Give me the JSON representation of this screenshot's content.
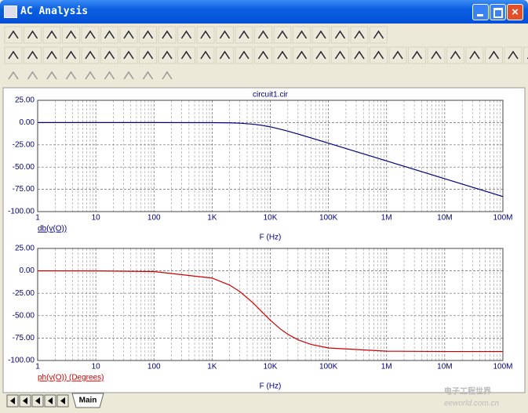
{
  "window": {
    "title": "AC Analysis"
  },
  "tabs": [
    "Main"
  ],
  "watermark": {
    "text": "电子工程世界",
    "url": "eeworld.com.cn"
  },
  "chart_data": [
    {
      "type": "line",
      "title": "circuit1.cir",
      "x_label": "F (Hz)",
      "log_x": true,
      "grid": true,
      "minor_grid": true,
      "x": [
        1,
        10,
        100,
        1000,
        2000,
        3000,
        5000,
        7000,
        10000,
        15000,
        20000,
        30000,
        50000,
        100000,
        1000000,
        10000000,
        100000000
      ],
      "series": [
        {
          "name": "db(v(O))",
          "color": "#000080",
          "values": [
            0,
            0,
            0,
            -0.1,
            -0.3,
            -0.7,
            -1.8,
            -3,
            -4.8,
            -7.5,
            -9.6,
            -12.9,
            -17.2,
            -23.1,
            -43.1,
            -63.1,
            -83.1
          ]
        }
      ],
      "xlim": [
        1,
        100000000
      ],
      "xticks": [
        1,
        10,
        100,
        {
          "value": 1000,
          "label": "1K"
        },
        {
          "value": 10000,
          "label": "10K"
        },
        {
          "value": 100000,
          "label": "100K"
        },
        {
          "value": 1000000,
          "label": "1M"
        },
        {
          "value": 10000000,
          "label": "10M"
        },
        {
          "value": 100000000,
          "label": "100M"
        }
      ],
      "ylim": [
        -100,
        25
      ],
      "yticks": [
        {
          "value": 25,
          "label": "25.00"
        },
        {
          "value": 0,
          "label": "0.00"
        },
        {
          "value": -25,
          "label": "-25.00"
        },
        {
          "value": -50,
          "label": "-50.00"
        },
        {
          "value": -75,
          "label": "-75.00"
        },
        {
          "value": -100,
          "label": "-100.00"
        }
      ]
    },
    {
      "type": "line",
      "x_label": "F (Hz)",
      "log_x": true,
      "grid": true,
      "minor_grid": true,
      "x": [
        1,
        10,
        100,
        1000,
        2000,
        3000,
        5000,
        7000,
        10000,
        15000,
        20000,
        30000,
        50000,
        100000,
        1000000,
        10000000,
        100000000
      ],
      "series": [
        {
          "name": "ph(v(O)) (Degrees)",
          "color": "#cc0000",
          "values": [
            0,
            -0.1,
            -0.8,
            -8.1,
            -15.9,
            -23.2,
            -35.5,
            -45,
            -55,
            -65,
            -70.7,
            -76.9,
            -82,
            -86,
            -89.6,
            -90,
            -90
          ]
        }
      ],
      "xlim": [
        1,
        100000000
      ],
      "xticks": [
        1,
        10,
        100,
        {
          "value": 1000,
          "label": "1K"
        },
        {
          "value": 10000,
          "label": "10K"
        },
        {
          "value": 100000,
          "label": "100K"
        },
        {
          "value": 1000000,
          "label": "1M"
        },
        {
          "value": 10000000,
          "label": "10M"
        },
        {
          "value": 100000000,
          "label": "100M"
        }
      ],
      "ylim": [
        -100,
        25
      ],
      "yticks": [
        {
          "value": 25,
          "label": "25.00"
        },
        {
          "value": 0,
          "label": "0.00"
        },
        {
          "value": -25,
          "label": "-25.00"
        },
        {
          "value": -50,
          "label": "-50.00"
        },
        {
          "value": -75,
          "label": "-75.00"
        },
        {
          "value": -100,
          "label": "-100.00"
        }
      ]
    }
  ]
}
